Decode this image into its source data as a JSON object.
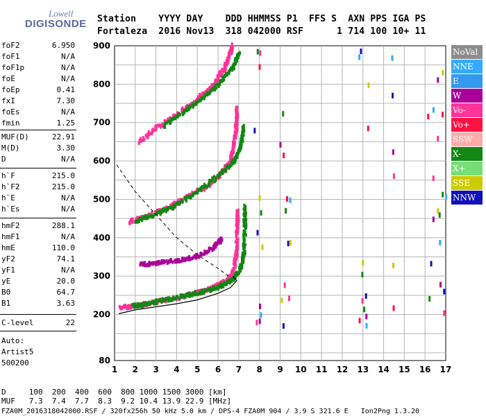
{
  "logo": {
    "top": "Lowell",
    "bottom": "DIGISONDE"
  },
  "header": {
    "line1": "Station    YYYY DAY    DDD HHMMSS P1  FFS S  AXN PPS IGA PS",
    "line2": "Fortaleza  2016 Nov13  318 042000 RSF      1 714 100 10+ 11"
  },
  "params": [
    {
      "name": "foF2",
      "value": "6.950"
    },
    {
      "name": "foF1",
      "value": "N/A"
    },
    {
      "name": "foF1p",
      "value": "N/A"
    },
    {
      "name": "foE",
      "value": "N/A"
    },
    {
      "name": "foEp",
      "value": "0.41"
    },
    {
      "name": "fxI",
      "value": "7.30"
    },
    {
      "name": "foEs",
      "value": "N/A"
    },
    {
      "name": "fmin",
      "value": "1.25"
    },
    {
      "name": "MUF(D)",
      "value": "22.91"
    },
    {
      "name": "M(D)",
      "value": "3.30"
    },
    {
      "name": "D",
      "value": "N/A"
    },
    {
      "name": "h`F",
      "value": "215.0"
    },
    {
      "name": "h`F2",
      "value": "215.0"
    },
    {
      "name": "h`E",
      "value": "N/A"
    },
    {
      "name": "h`Es",
      "value": "N/A"
    },
    {
      "name": "hmF2",
      "value": "288.1"
    },
    {
      "name": "hmF1",
      "value": "N/A"
    },
    {
      "name": "hmE",
      "value": "110.0"
    },
    {
      "name": "yF2",
      "value": "74.1"
    },
    {
      "name": "yF1",
      "value": "N/A"
    },
    {
      "name": "yE",
      "value": "20.0"
    },
    {
      "name": "B0",
      "value": "64.7"
    },
    {
      "name": "B1",
      "value": "3.63"
    },
    {
      "name": "C-level",
      "value": "22"
    }
  ],
  "auto": {
    "line1": "Auto:",
    "line2": "Artist5",
    "line3": "500200"
  },
  "legend": [
    {
      "label": "NoVal",
      "color": "#8c8c8c"
    },
    {
      "label": "NNE",
      "color": "#33aaff"
    },
    {
      "label": "E",
      "color": "#3399ee"
    },
    {
      "label": "W",
      "color": "#aa0099"
    },
    {
      "label": "Vo-",
      "color": "#ff3399"
    },
    {
      "label": "Vo+",
      "color": "#ff1144"
    },
    {
      "label": "SSW",
      "color": "#ffaaaa"
    },
    {
      "label": "X-",
      "color": "#118811"
    },
    {
      "label": "X+",
      "color": "#77dd77"
    },
    {
      "label": "SSE",
      "color": "#cccc00"
    },
    {
      "label": "NNW",
      "color": "#1111bb"
    }
  ],
  "bottom": {
    "line1": "D     100  200  400  600  800 1000 1500 3000 [km]",
    "line2": "MUF   7.3  7.4  7.7  8.3  9.2 10.4 13.9 22.9 [MHz]",
    "line3": "FZA0M_2016318042000.RSF / 320fx256h 50 kHz 5.0 km / DPS-4 FZA0M 904 / 3.9 S 321.6 E   Ion2Png 1.3.20"
  },
  "chart_data": {
    "type": "scatter",
    "x_range": [
      1,
      17
    ],
    "y_range": [
      80,
      900
    ],
    "x_ticks": [
      1,
      2,
      3,
      4,
      5,
      6,
      7,
      8,
      9,
      10,
      11,
      12,
      13,
      14,
      15,
      16,
      17
    ],
    "y_ticks": [
      80,
      200,
      300,
      400,
      500,
      600,
      700,
      800,
      900
    ],
    "grid": true,
    "traces": [
      {
        "name": "F2 O-trace",
        "color": "#ff3399",
        "points": [
          [
            1.3,
            218
          ],
          [
            2,
            222
          ],
          [
            3,
            232
          ],
          [
            4,
            243
          ],
          [
            5,
            256
          ],
          [
            5.5,
            264
          ],
          [
            6,
            275
          ],
          [
            6.5,
            292
          ],
          [
            6.8,
            320
          ],
          [
            6.9,
            370
          ],
          [
            6.93,
            430
          ],
          [
            6.95,
            470
          ]
        ]
      },
      {
        "name": "F2 X-trace",
        "color": "#118811",
        "points": [
          [
            1.9,
            222
          ],
          [
            2.5,
            227
          ],
          [
            3.5,
            238
          ],
          [
            4.5,
            250
          ],
          [
            5.5,
            262
          ],
          [
            6.2,
            275
          ],
          [
            6.8,
            295
          ],
          [
            7.1,
            320
          ],
          [
            7.25,
            360
          ],
          [
            7.3,
            420
          ],
          [
            7.3,
            480
          ]
        ]
      },
      {
        "name": "2F multiple",
        "color": "#ff3399",
        "points": [
          [
            1.7,
            440
          ],
          [
            2.5,
            455
          ],
          [
            3.5,
            477
          ],
          [
            4.5,
            505
          ],
          [
            5.5,
            535
          ],
          [
            6.2,
            570
          ],
          [
            6.6,
            600
          ],
          [
            6.8,
            650
          ],
          [
            6.9,
            700
          ],
          [
            6.93,
            740
          ]
        ]
      },
      {
        "name": "2F X multiple",
        "color": "#118811",
        "points": [
          [
            2.0,
            443
          ],
          [
            2.8,
            456
          ],
          [
            3.8,
            479
          ],
          [
            5,
            520
          ],
          [
            6,
            560
          ],
          [
            6.8,
            600
          ],
          [
            7.1,
            640
          ],
          [
            7.25,
            690
          ]
        ]
      },
      {
        "name": "3F multiple",
        "color": "#ff3399",
        "points": [
          [
            2.2,
            650
          ],
          [
            3,
            685
          ],
          [
            4,
            720
          ],
          [
            5,
            760
          ],
          [
            5.8,
            800
          ],
          [
            6.3,
            840
          ],
          [
            6.6,
            880
          ],
          [
            6.7,
            900
          ]
        ]
      },
      {
        "name": "3F X multiple",
        "color": "#118811",
        "points": [
          [
            3.4,
            690
          ],
          [
            4.4,
            730
          ],
          [
            5.4,
            770
          ],
          [
            6.2,
            810
          ],
          [
            6.8,
            850
          ],
          [
            7.0,
            880
          ]
        ]
      },
      {
        "name": "Spread F",
        "color": "#aa0099",
        "points": [
          [
            2.3,
            330
          ],
          [
            3,
            333
          ],
          [
            4,
            340
          ],
          [
            5,
            350
          ],
          [
            5.8,
            375
          ],
          [
            6.2,
            398
          ]
        ]
      }
    ],
    "profile": {
      "color": "#000000",
      "points": [
        [
          1.2,
          202
        ],
        [
          2,
          212
        ],
        [
          3,
          220
        ],
        [
          4,
          228
        ],
        [
          5,
          238
        ],
        [
          6,
          255
        ],
        [
          6.6,
          270
        ],
        [
          6.9,
          288
        ],
        [
          6.7,
          300
        ]
      ]
    },
    "dashed_profile": {
      "color": "#000000",
      "points": [
        [
          1.1,
          590
        ],
        [
          2,
          520
        ],
        [
          3,
          460
        ],
        [
          4,
          400
        ],
        [
          5,
          355
        ],
        [
          6,
          320
        ],
        [
          6.5,
          300
        ]
      ]
    }
  }
}
